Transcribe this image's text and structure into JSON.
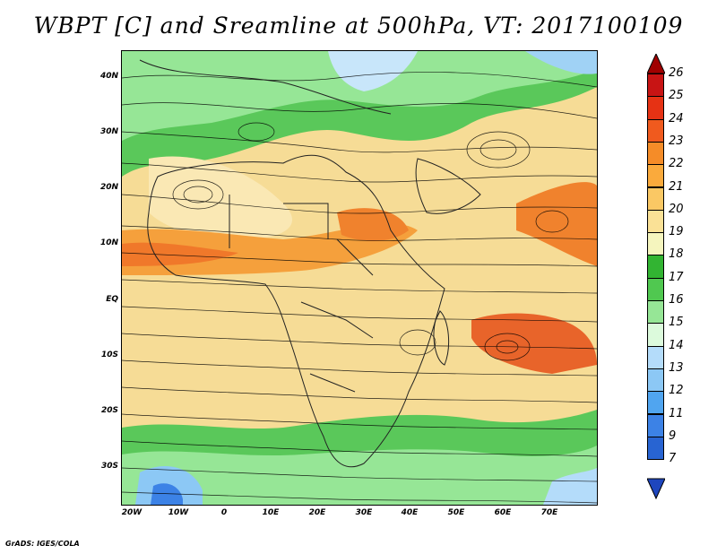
{
  "title": "WBPT [C] and Sreamline at 500hPa, VT: 2017100109",
  "credit": "GrADS: IGES/COLA",
  "map": {
    "region": "Africa and Indian Ocean",
    "lon_range": [
      -22,
      80
    ],
    "lat_range": [
      -36,
      45
    ],
    "overlay": "streamlines",
    "shaded_field": "wet-bulb potential temperature"
  },
  "lat_labels": [
    "40N",
    "30N",
    "20N",
    "10N",
    "EQ",
    "10S",
    "20S",
    "30S"
  ],
  "lon_labels": [
    "20W",
    "10W",
    "0",
    "10E",
    "20E",
    "30E",
    "40E",
    "50E",
    "60E",
    "70E"
  ],
  "colorbar": {
    "levels": [
      "26",
      "25",
      "24",
      "23",
      "22",
      "21",
      "20",
      "19",
      "18",
      "17",
      "16",
      "15",
      "14",
      "13",
      "12",
      "11",
      "9",
      "7"
    ],
    "colors": [
      "#a00000",
      "#c81414",
      "#e63214",
      "#f05a1e",
      "#f58c28",
      "#faaa3c",
      "#fac864",
      "#fae196",
      "#f5f5be",
      "#32b432",
      "#50c850",
      "#96e696",
      "#dcfadc",
      "#b4dcfa",
      "#8cc8f5",
      "#50a5f0",
      "#3c82e6",
      "#2864d2",
      "#1e46be"
    ]
  }
}
